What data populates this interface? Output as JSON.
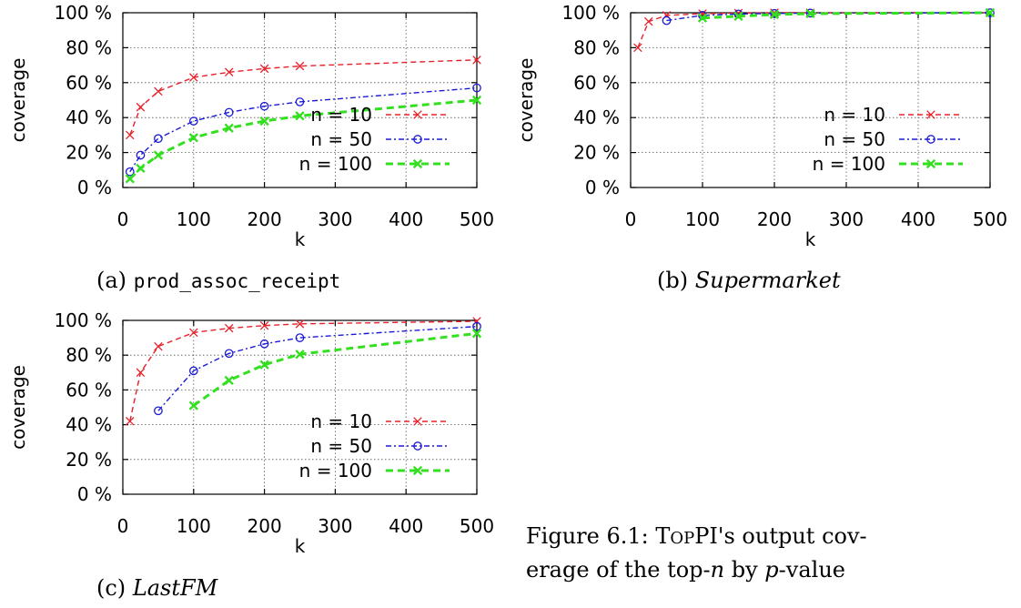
{
  "chart_data": [
    {
      "type": "line",
      "caption_tag": "(a)",
      "caption_text": "prod_assoc_receipt",
      "caption_style": "mono",
      "xlabel": "k",
      "ylabel": "coverage",
      "xlim": [
        0,
        500
      ],
      "ylim": [
        0,
        100
      ],
      "xticks": [
        0,
        100,
        200,
        300,
        400,
        500
      ],
      "yticks": [
        0,
        20,
        40,
        60,
        80,
        100
      ],
      "ytick_labels": [
        "0 %",
        "20 %",
        "40 %",
        "60 %",
        "80 %",
        "100 %"
      ],
      "grid": true,
      "legend_position": "lower-right",
      "series": [
        {
          "name": "n = 10",
          "color": "#e8202a",
          "marker": "x",
          "dash": "dashed",
          "x": [
            10,
            25,
            50,
            100,
            150,
            200,
            250,
            500
          ],
          "y": [
            30,
            46,
            55,
            63,
            66,
            68,
            69.5,
            73
          ]
        },
        {
          "name": "n = 50",
          "color": "#1a1ad6",
          "marker": "circle",
          "dash": "dashdot",
          "x": [
            10,
            25,
            50,
            100,
            150,
            200,
            250,
            500
          ],
          "y": [
            9,
            18.5,
            28,
            38,
            43,
            46.5,
            49,
            57
          ]
        },
        {
          "name": "n = 100",
          "color": "#33e01f",
          "marker": "x",
          "dash": "bold-dashed",
          "x": [
            10,
            25,
            50,
            100,
            150,
            200,
            250,
            500
          ],
          "y": [
            5,
            11,
            18.5,
            28.5,
            34,
            38,
            41,
            50
          ]
        }
      ]
    },
    {
      "type": "line",
      "caption_tag": "(b)",
      "caption_text": "Supermarket",
      "caption_style": "italic",
      "xlabel": "k",
      "ylabel": "coverage",
      "xlim": [
        0,
        500
      ],
      "ylim": [
        0,
        100
      ],
      "xticks": [
        0,
        100,
        200,
        300,
        400,
        500
      ],
      "yticks": [
        0,
        20,
        40,
        60,
        80,
        100
      ],
      "ytick_labels": [
        "0 %",
        "20 %",
        "40 %",
        "60 %",
        "80 %",
        "100 %"
      ],
      "grid": true,
      "legend_position": "lower-right",
      "series": [
        {
          "name": "n = 10",
          "color": "#e8202a",
          "marker": "x",
          "dash": "dashed",
          "x": [
            10,
            25,
            50,
            100,
            150,
            200,
            250,
            500
          ],
          "y": [
            80,
            95,
            98.5,
            99.5,
            99.8,
            100,
            100,
            100
          ]
        },
        {
          "name": "n = 50",
          "color": "#1a1ad6",
          "marker": "circle",
          "dash": "dashdot",
          "x": [
            50,
            100,
            150,
            200,
            250,
            500
          ],
          "y": [
            95.5,
            98.5,
            99.3,
            99.6,
            99.8,
            100
          ]
        },
        {
          "name": "n = 100",
          "color": "#33e01f",
          "marker": "x",
          "dash": "bold-dashed",
          "x": [
            100,
            150,
            200,
            250,
            500
          ],
          "y": [
            97,
            98,
            99,
            99.5,
            100
          ]
        }
      ]
    },
    {
      "type": "line",
      "caption_tag": "(c)",
      "caption_text": "LastFM",
      "caption_style": "italic",
      "xlabel": "k",
      "ylabel": "coverage",
      "xlim": [
        0,
        500
      ],
      "ylim": [
        0,
        100
      ],
      "xticks": [
        0,
        100,
        200,
        300,
        400,
        500
      ],
      "yticks": [
        0,
        20,
        40,
        60,
        80,
        100
      ],
      "ytick_labels": [
        "0 %",
        "20 %",
        "40 %",
        "60 %",
        "80 %",
        "100 %"
      ],
      "grid": true,
      "legend_position": "lower-right",
      "series": [
        {
          "name": "n = 10",
          "color": "#e8202a",
          "marker": "x",
          "dash": "dashed",
          "x": [
            10,
            25,
            50,
            100,
            150,
            200,
            250,
            500
          ],
          "y": [
            42,
            70,
            85,
            93,
            95.5,
            97,
            98,
            99.5
          ]
        },
        {
          "name": "n = 50",
          "color": "#1a1ad6",
          "marker": "circle",
          "dash": "dashdot",
          "x": [
            50,
            100,
            150,
            200,
            250,
            500
          ],
          "y": [
            48,
            71,
            81,
            86.5,
            90,
            96.5
          ]
        },
        {
          "name": "n = 100",
          "color": "#33e01f",
          "marker": "x",
          "dash": "bold-dashed",
          "x": [
            100,
            150,
            200,
            250,
            500
          ],
          "y": [
            51,
            65.5,
            74.5,
            80.5,
            92.5
          ]
        }
      ]
    }
  ],
  "figure_caption": {
    "line1_prefix": "Figure 6.1:",
    "line1_name_cap": "T",
    "line1_name_small": "OP",
    "line1_name_rest": "PI",
    "line1_suffix": "'s output cov-",
    "line2_a": "erage of the top-",
    "line2_n": "n",
    "line2_b": " by ",
    "line2_p": "p",
    "line2_c": "-value"
  }
}
